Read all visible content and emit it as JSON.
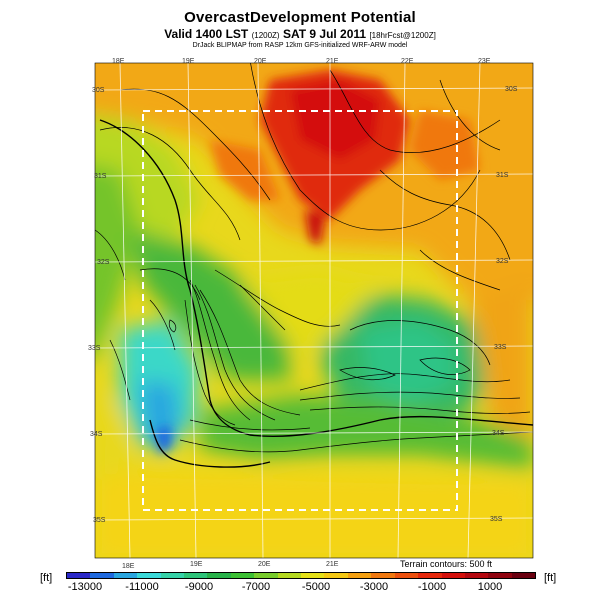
{
  "title": "OvercastDevelopment Potential",
  "subtitle": {
    "main": "Valid 1400 LST",
    "utc": "(1200Z)",
    "date": "SAT 9 Jul 2011",
    "run": "[18hrFcst@1200Z]"
  },
  "credit": "DrJack BLIPMAP from RASP 12km GFS-initialized WRF-ARW model",
  "longitude_labels_top": [
    "18E",
    "19E",
    "20E",
    "21E",
    "22E",
    "23E"
  ],
  "longitude_labels_bottom": [
    "18E",
    "19E",
    "20E",
    "21E"
  ],
  "latitude_labels_left": [
    "30S",
    "31S",
    "32S",
    "33S",
    "34S",
    "35S"
  ],
  "latitude_labels_right": [
    "30S",
    "31S",
    "32S",
    "33S",
    "34S",
    "35S"
  ],
  "terrain_note": "Terrain contours: 500 ft",
  "colorbar": {
    "unit": "[ft]",
    "ticks": [
      "-13000",
      "-11000",
      "-9000",
      "-7000",
      "-5000",
      "-3000",
      "-1000",
      "1000"
    ],
    "colors": [
      "#2a28c8",
      "#1f6ae0",
      "#2aa6e0",
      "#3ad8d8",
      "#36d2a8",
      "#2ec47a",
      "#28b24a",
      "#3cc034",
      "#78cc2c",
      "#b4d820",
      "#e4e018",
      "#f4c814",
      "#f4a012",
      "#f07810",
      "#ec500e",
      "#e6280c",
      "#d4100c",
      "#b40810",
      "#900410",
      "#6a0010"
    ]
  }
}
